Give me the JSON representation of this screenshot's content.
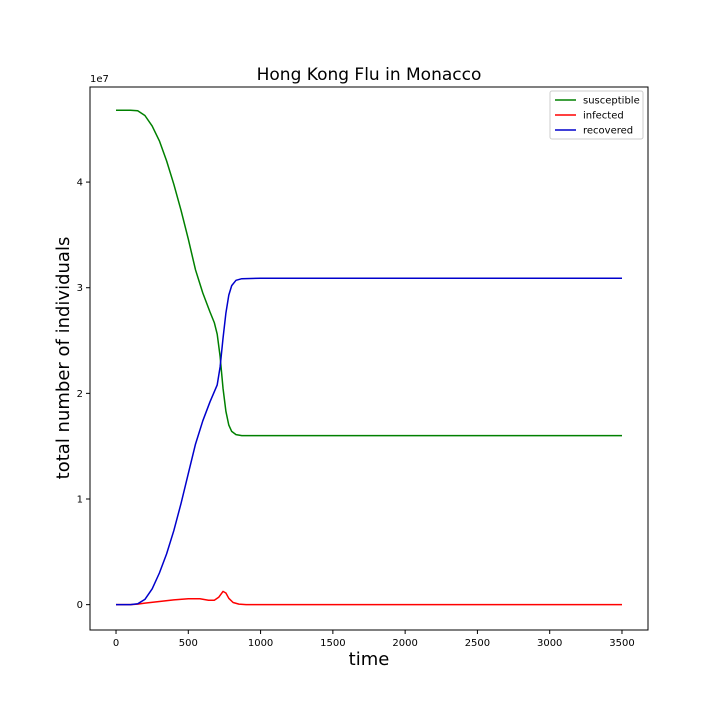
{
  "chart_data": {
    "type": "line",
    "title": "Hong Kong Flu in Monacco",
    "xlabel": "time",
    "ylabel": "total number of individuals",
    "y_offset_label": "1e7",
    "xlim": [
      -180,
      3680
    ],
    "ylim": [
      -2400000,
      49000000
    ],
    "xticks": [
      0,
      500,
      1000,
      1500,
      2000,
      2500,
      3000,
      3500
    ],
    "xtick_labels": [
      "0",
      "500",
      "1000",
      "1500",
      "2000",
      "2500",
      "3000",
      "3500"
    ],
    "yticks": [
      0,
      10000000,
      20000000,
      30000000,
      40000000
    ],
    "ytick_labels": [
      "0",
      "1",
      "2",
      "3",
      "4"
    ],
    "grid": false,
    "legend_position": "top-right",
    "series": [
      {
        "name": "susceptible",
        "color": "#008000",
        "points": [
          [
            0,
            46800000
          ],
          [
            100,
            46800000
          ],
          [
            150,
            46750000
          ],
          [
            200,
            46300000
          ],
          [
            250,
            45300000
          ],
          [
            300,
            43900000
          ],
          [
            350,
            42000000
          ],
          [
            400,
            39800000
          ],
          [
            450,
            37300000
          ],
          [
            500,
            34600000
          ],
          [
            550,
            31700000
          ],
          [
            600,
            29500000
          ],
          [
            650,
            27700000
          ],
          [
            680,
            26700000
          ],
          [
            700,
            25600000
          ],
          [
            720,
            23500000
          ],
          [
            740,
            20500000
          ],
          [
            760,
            18300000
          ],
          [
            780,
            17000000
          ],
          [
            800,
            16400000
          ],
          [
            830,
            16100000
          ],
          [
            870,
            16000000
          ],
          [
            1000,
            16000000
          ],
          [
            1500,
            16000000
          ],
          [
            2000,
            16000000
          ],
          [
            2500,
            16000000
          ],
          [
            3000,
            16000000
          ],
          [
            3500,
            16000000
          ]
        ]
      },
      {
        "name": "infected",
        "color": "#ff0000",
        "points": [
          [
            0,
            0
          ],
          [
            100,
            0
          ],
          [
            150,
            50000
          ],
          [
            200,
            150000
          ],
          [
            300,
            300000
          ],
          [
            400,
            450000
          ],
          [
            500,
            550000
          ],
          [
            580,
            550000
          ],
          [
            640,
            420000
          ],
          [
            680,
            420000
          ],
          [
            710,
            700000
          ],
          [
            740,
            1250000
          ],
          [
            760,
            1100000
          ],
          [
            780,
            600000
          ],
          [
            810,
            200000
          ],
          [
            850,
            50000
          ],
          [
            900,
            0
          ],
          [
            1000,
            0
          ],
          [
            1500,
            0
          ],
          [
            2000,
            0
          ],
          [
            2500,
            0
          ],
          [
            3000,
            0
          ],
          [
            3500,
            0
          ]
        ]
      },
      {
        "name": "recovered",
        "color": "#0000cc",
        "points": [
          [
            0,
            0
          ],
          [
            100,
            0
          ],
          [
            150,
            80000
          ],
          [
            200,
            500000
          ],
          [
            250,
            1500000
          ],
          [
            300,
            3000000
          ],
          [
            350,
            4800000
          ],
          [
            400,
            7000000
          ],
          [
            450,
            9600000
          ],
          [
            500,
            12400000
          ],
          [
            550,
            15200000
          ],
          [
            600,
            17400000
          ],
          [
            650,
            19200000
          ],
          [
            700,
            20800000
          ],
          [
            720,
            22500000
          ],
          [
            740,
            25200000
          ],
          [
            760,
            27600000
          ],
          [
            780,
            29300000
          ],
          [
            800,
            30200000
          ],
          [
            830,
            30700000
          ],
          [
            870,
            30850000
          ],
          [
            1000,
            30900000
          ],
          [
            1500,
            30900000
          ],
          [
            2000,
            30900000
          ],
          [
            2500,
            30900000
          ],
          [
            3000,
            30900000
          ],
          [
            3500,
            30900000
          ]
        ]
      }
    ]
  }
}
